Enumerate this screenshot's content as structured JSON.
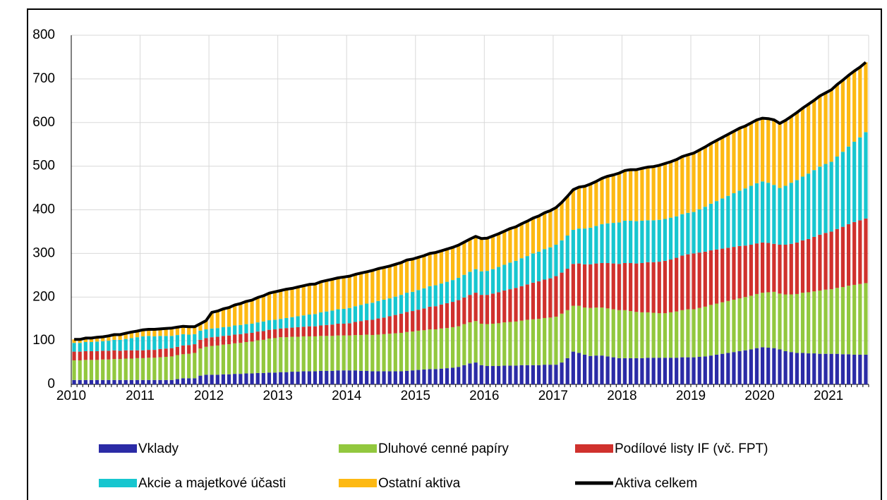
{
  "chart_data": {
    "type": "stacked-bar",
    "categories": [
      "2010",
      null,
      null,
      null,
      null,
      null,
      null,
      null,
      null,
      null,
      null,
      null,
      "2011",
      null,
      null,
      null,
      null,
      null,
      null,
      null,
      null,
      null,
      null,
      null,
      "2012",
      null,
      null,
      null,
      null,
      null,
      null,
      null,
      null,
      null,
      null,
      null,
      "2013",
      null,
      null,
      null,
      null,
      null,
      null,
      null,
      null,
      null,
      null,
      null,
      "2014",
      null,
      null,
      null,
      null,
      null,
      null,
      null,
      null,
      null,
      null,
      null,
      "2015",
      null,
      null,
      null,
      null,
      null,
      null,
      null,
      null,
      null,
      null,
      null,
      "2016",
      null,
      null,
      null,
      null,
      null,
      null,
      null,
      null,
      null,
      null,
      null,
      "2017",
      null,
      null,
      null,
      null,
      null,
      null,
      null,
      null,
      null,
      null,
      null,
      "2018",
      null,
      null,
      null,
      null,
      null,
      null,
      null,
      null,
      null,
      null,
      null,
      "2019",
      null,
      null,
      null,
      null,
      null,
      null,
      null,
      null,
      null,
      null,
      null,
      "2020",
      null,
      null,
      null,
      null,
      null,
      null,
      null,
      null,
      null,
      null,
      null,
      "2021",
      null,
      null,
      null,
      null,
      null,
      null
    ],
    "ylim": [
      0,
      800
    ],
    "yticks": [
      0,
      100,
      200,
      300,
      400,
      500,
      600,
      700,
      800
    ],
    "grid": true,
    "series": [
      {
        "name": "Vklady",
        "color": "#2b2ba6",
        "type": "bar",
        "values": [
          10,
          10,
          10,
          10,
          10,
          10,
          10,
          10,
          10,
          10,
          10,
          10,
          10,
          10,
          10,
          10,
          10,
          10,
          12,
          14,
          14,
          14,
          20,
          22,
          22,
          22,
          23,
          23,
          24,
          24,
          25,
          25,
          26,
          26,
          27,
          27,
          28,
          28,
          29,
          29,
          30,
          30,
          30,
          31,
          31,
          31,
          32,
          32,
          32,
          32,
          31,
          31,
          30,
          30,
          30,
          30,
          30,
          30,
          31,
          32,
          33,
          34,
          35,
          35,
          36,
          37,
          38,
          40,
          44,
          48,
          50,
          44,
          42,
          42,
          42,
          43,
          43,
          43,
          44,
          44,
          44,
          44,
          45,
          45,
          45,
          50,
          60,
          75,
          72,
          68,
          65,
          66,
          66,
          64,
          62,
          60,
          60,
          60,
          60,
          60,
          61,
          61,
          61,
          61,
          61,
          61,
          62,
          62,
          62,
          63,
          64,
          66,
          68,
          70,
          72,
          74,
          76,
          78,
          80,
          83,
          85,
          84,
          83,
          80,
          76,
          74,
          72,
          72,
          71,
          71,
          70,
          70,
          70,
          70,
          69,
          69,
          68,
          68,
          68
        ]
      },
      {
        "name": "Dluhové cenné papíry",
        "color": "#92c83e",
        "type": "bar",
        "values": [
          45,
          45,
          46,
          46,
          46,
          47,
          47,
          48,
          48,
          49,
          49,
          50,
          50,
          51,
          51,
          52,
          53,
          54,
          55,
          55,
          56,
          58,
          62,
          64,
          66,
          67,
          68,
          69,
          70,
          71,
          72,
          73,
          75,
          76,
          78,
          79,
          80,
          80,
          80,
          80,
          80,
          80,
          80,
          80,
          80,
          80,
          80,
          80,
          80,
          81,
          82,
          83,
          83,
          84,
          85,
          86,
          87,
          88,
          89,
          89,
          90,
          90,
          91,
          91,
          92,
          92,
          93,
          93,
          94,
          94,
          95,
          95,
          96,
          97,
          98,
          99,
          100,
          101,
          102,
          104,
          105,
          106,
          107,
          108,
          110,
          112,
          110,
          105,
          108,
          108,
          110,
          110,
          110,
          110,
          110,
          110,
          110,
          108,
          106,
          105,
          104,
          103,
          102,
          102,
          104,
          106,
          108,
          110,
          110,
          112,
          114,
          116,
          117,
          118,
          119,
          120,
          121,
          122,
          123,
          124,
          125,
          127,
          129,
          128,
          130,
          132,
          135,
          138,
          140,
          142,
          145,
          147,
          148,
          151,
          154,
          157,
          160,
          162,
          164
        ]
      },
      {
        "name": "Podílové listy IF (vč. FPT)",
        "color": "#d0312d",
        "type": "bar",
        "values": [
          20,
          20,
          20,
          20,
          20,
          20,
          20,
          20,
          19,
          19,
          19,
          18,
          18,
          18,
          18,
          19,
          19,
          19,
          19,
          20,
          20,
          20,
          20,
          20,
          20,
          20,
          20,
          20,
          20,
          20,
          20,
          20,
          20,
          20,
          20,
          20,
          20,
          21,
          21,
          22,
          22,
          23,
          23,
          24,
          25,
          26,
          27,
          27,
          28,
          30,
          32,
          33,
          35,
          37,
          38,
          40,
          42,
          44,
          46,
          47,
          48,
          50,
          52,
          53,
          55,
          57,
          58,
          60,
          61,
          63,
          65,
          66,
          67,
          69,
          71,
          73,
          75,
          77,
          79,
          81,
          84,
          86,
          88,
          90,
          93,
          94,
          95,
          96,
          97,
          99,
          100,
          101,
          102,
          104,
          105,
          106,
          108,
          110,
          111,
          113,
          115,
          116,
          118,
          120,
          121,
          123,
          125,
          126,
          128,
          127,
          126,
          125,
          124,
          123,
          122,
          121,
          120,
          118,
          117,
          116,
          115,
          113,
          110,
          112,
          114,
          116,
          118,
          120,
          122,
          125,
          128,
          130,
          132,
          135,
          138,
          141,
          144,
          146,
          148
        ]
      },
      {
        "name": "Akcie a majetkové účasti",
        "color": "#17c6cf",
        "type": "bar",
        "values": [
          20,
          20,
          21,
          21,
          22,
          22,
          23,
          24,
          25,
          26,
          28,
          30,
          32,
          32,
          31,
          30,
          29,
          28,
          27,
          26,
          24,
          23,
          21,
          20,
          20,
          20,
          20,
          20,
          21,
          21,
          21,
          21,
          21,
          22,
          22,
          22,
          22,
          23,
          24,
          25,
          26,
          27,
          28,
          30,
          31,
          32,
          33,
          34,
          35,
          36,
          37,
          38,
          39,
          40,
          41,
          41,
          42,
          43,
          44,
          44,
          45,
          46,
          47,
          48,
          48,
          49,
          50,
          51,
          52,
          53,
          54,
          54,
          55,
          56,
          58,
          59,
          61,
          62,
          64,
          65,
          67,
          68,
          70,
          71,
          72,
          74,
          76,
          78,
          80,
          82,
          84,
          86,
          89,
          91,
          93,
          95,
          97,
          97,
          97,
          97,
          96,
          96,
          96,
          96,
          96,
          95,
          95,
          95,
          95,
          99,
          103,
          107,
          111,
          115,
          119,
          123,
          127,
          131,
          135,
          138,
          140,
          138,
          135,
          130,
          135,
          140,
          143,
          146,
          150,
          153,
          156,
          158,
          160,
          166,
          172,
          178,
          184,
          190,
          198
        ]
      },
      {
        "name": "Ostatní aktiva",
        "color": "#fdb913",
        "type": "bar",
        "values": [
          8,
          8,
          9,
          9,
          10,
          10,
          11,
          12,
          12,
          13,
          14,
          14,
          15,
          15,
          16,
          16,
          17,
          18,
          18,
          18,
          18,
          17,
          16,
          20,
          37,
          39,
          42,
          44,
          47,
          49,
          52,
          54,
          57,
          59,
          62,
          64,
          65,
          66,
          66,
          67,
          68,
          69,
          69,
          70,
          71,
          72,
          72,
          73,
          73,
          73,
          73,
          73,
          74,
          74,
          74,
          74,
          74,
          74,
          75,
          75,
          75,
          75,
          75,
          75,
          75,
          75,
          75,
          75,
          75,
          75,
          75,
          75,
          75,
          76,
          76,
          77,
          78,
          78,
          79,
          80,
          81,
          82,
          83,
          84,
          85,
          87,
          90,
          92,
          95,
          97,
          100,
          102,
          105,
          108,
          110,
          113,
          115,
          117,
          118,
          120,
          122,
          123,
          125,
          127,
          128,
          130,
          132,
          133,
          135,
          136,
          137,
          138,
          139,
          140,
          141,
          142,
          143,
          143,
          144,
          145,
          145,
          147,
          149,
          148,
          150,
          152,
          155,
          157,
          159,
          160,
          162,
          163,
          165,
          165,
          164,
          163,
          162,
          161,
          160
        ]
      },
      {
        "name": "Aktiva celkem",
        "color": "#000000",
        "type": "line",
        "values": [
          103,
          103,
          106,
          106,
          108,
          109,
          111,
          114,
          114,
          117,
          120,
          122,
          125,
          126,
          126,
          127,
          128,
          129,
          131,
          133,
          132,
          132,
          139,
          146,
          165,
          168,
          173,
          176,
          182,
          185,
          190,
          193,
          199,
          203,
          209,
          212,
          215,
          218,
          220,
          223,
          226,
          229,
          230,
          235,
          238,
          241,
          244,
          246,
          248,
          252,
          255,
          258,
          261,
          265,
          268,
          271,
          275,
          279,
          285,
          287,
          291,
          295,
          300,
          302,
          306,
          310,
          314,
          319,
          326,
          333,
          339,
          334,
          335,
          340,
          345,
          351,
          357,
          361,
          368,
          374,
          381,
          386,
          393,
          398,
          405,
          417,
          431,
          446,
          452,
          454,
          459,
          465,
          472,
          477,
          480,
          484,
          490,
          492,
          492,
          495,
          498,
          499,
          502,
          506,
          510,
          515,
          522,
          526,
          530,
          537,
          544,
          552,
          559,
          566,
          573,
          580,
          587,
          592,
          599,
          606,
          610,
          609,
          606,
          598,
          605,
          614,
          623,
          633,
          642,
          651,
          661,
          668,
          675,
          687,
          697,
          708,
          718,
          727,
          738
        ]
      }
    ]
  }
}
